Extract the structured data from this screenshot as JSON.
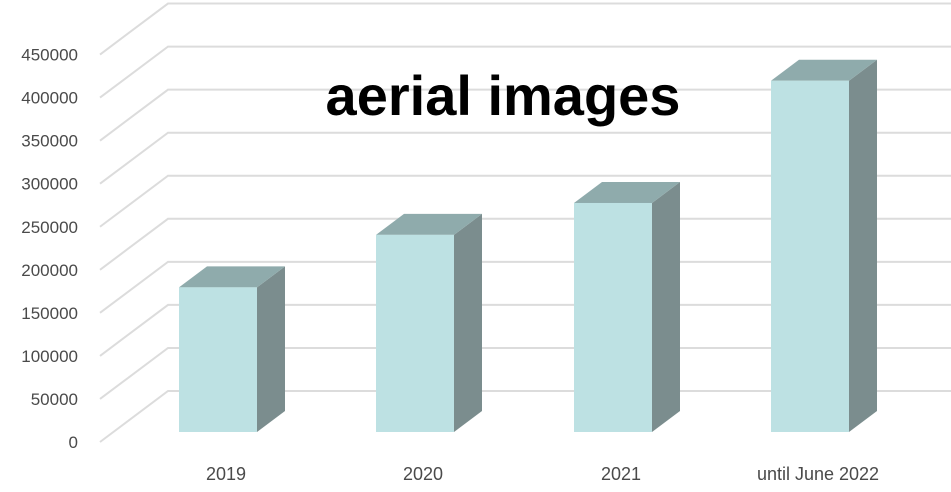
{
  "chart_data": {
    "type": "bar",
    "title": "aerial images",
    "categories": [
      "2019",
      "2020",
      "2021",
      "until June 2022"
    ],
    "values": [
      168000,
      229000,
      266000,
      408000
    ],
    "yticks": [
      "0",
      "50000",
      "100000",
      "150000",
      "200000",
      "250000",
      "300000",
      "350000",
      "400000",
      "450000"
    ],
    "ylim": [
      0,
      450000
    ],
    "xlabel": "",
    "ylabel": "",
    "grid": true,
    "legend": "none",
    "three_d": true
  },
  "colors": {
    "bar_front": "#bde1e3",
    "bar_top": "#8fabac",
    "bar_side": "#7b8d8e",
    "grid": "#dcdcdc",
    "label": "#4a4a4a",
    "title": "#000000"
  }
}
